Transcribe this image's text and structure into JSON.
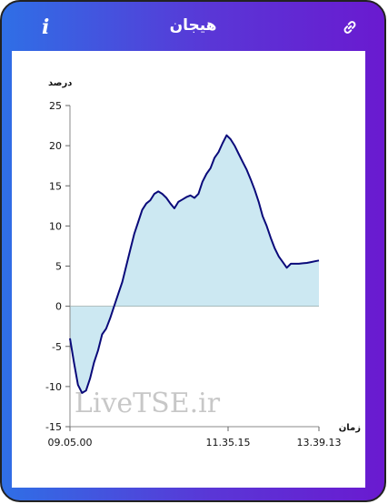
{
  "header": {
    "title": "هیجان",
    "info_icon": "info-icon",
    "link_icon": "link-icon",
    "info_text": "i"
  },
  "watermark": "LiveTSE.ir",
  "colors": {
    "line": "#0a0a7a",
    "fill": "#cce8f2",
    "accent_left": "#2f6fe6",
    "accent_right": "#6a1ad0"
  },
  "chart_data": {
    "type": "area",
    "title": "",
    "ylabel": "درصد",
    "xlabel": "زمان",
    "ylim": [
      -15,
      25
    ],
    "yticks": [
      25,
      20,
      15,
      10,
      5,
      0,
      -5,
      -10,
      -15
    ],
    "xticks": [
      "09.05.00",
      "11.35.15",
      "13.39.13"
    ],
    "grid": false,
    "series": [
      {
        "values": [
          -4,
          -7,
          -9.8,
          -10.8,
          -10.5,
          -9,
          -7,
          -5.5,
          -3.5,
          -2.8,
          -1.5,
          0,
          1.5,
          3,
          5,
          7,
          9,
          10.5,
          12,
          12.8,
          13.2,
          14,
          14.3,
          14,
          13.5,
          12.8,
          12.2,
          13,
          13.3,
          13.6,
          13.8,
          13.5,
          14,
          15.5,
          16.5,
          17.2,
          18.5,
          19.2,
          20.3,
          21.3,
          20.8,
          20,
          19,
          18,
          17,
          15.8,
          14.5,
          13,
          11.2,
          10,
          8.5,
          7.2,
          6.2,
          5.5,
          4.8,
          5.3,
          5.3,
          5.3,
          5.35,
          5.4,
          5.5,
          5.6,
          5.7
        ]
      }
    ]
  }
}
